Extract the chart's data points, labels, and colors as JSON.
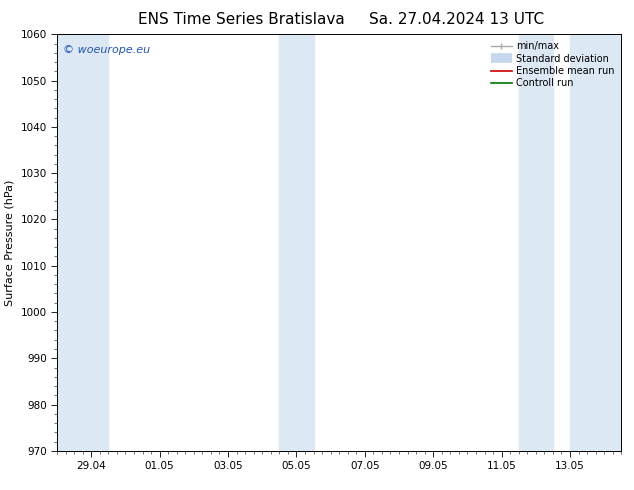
{
  "title_left": "ENS Time Series Bratislava",
  "title_right": "Sa. 27.04.2024 13 UTC",
  "ylabel": "Surface Pressure (hPa)",
  "ylim": [
    970,
    1060
  ],
  "yticks": [
    970,
    980,
    990,
    1000,
    1010,
    1020,
    1030,
    1040,
    1050,
    1060
  ],
  "xlabel_ticks": [
    "29.04",
    "01.05",
    "03.05",
    "05.05",
    "07.05",
    "09.05",
    "11.05",
    "13.05"
  ],
  "xmin": 0.0,
  "xmax": 16.5,
  "x_tick_positions": [
    1.0,
    3.0,
    5.0,
    7.0,
    9.0,
    11.0,
    13.0,
    15.0
  ],
  "band_color": "#dce9f5",
  "background_color": "#ffffff",
  "title_fontsize": 11,
  "axis_label_fontsize": 8,
  "tick_fontsize": 7.5,
  "watermark_text": "© woeurope.eu",
  "watermark_color": "#2255bb",
  "legend_labels": [
    "min/max",
    "Standard deviation",
    "Ensemble mean run",
    "Controll run"
  ],
  "legend_colors": [
    "#aaaaaa",
    "#c5d8ed",
    "#cc0000",
    "#007700"
  ],
  "precise_bands": [
    [
      0.0,
      1.5
    ],
    [
      6.5,
      7.5
    ],
    [
      13.5,
      14.5
    ],
    [
      15.0,
      16.5
    ]
  ]
}
